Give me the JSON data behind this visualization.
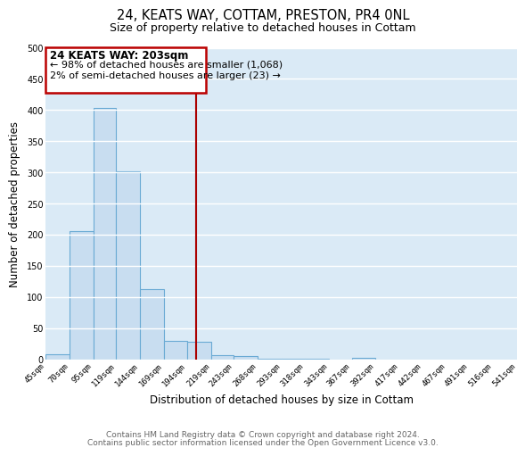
{
  "title": "24, KEATS WAY, COTTAM, PRESTON, PR4 0NL",
  "subtitle": "Size of property relative to detached houses in Cottam",
  "xlabel": "Distribution of detached houses by size in Cottam",
  "ylabel": "Number of detached properties",
  "bar_color": "#c8ddf0",
  "bar_edge_color": "#6aaad4",
  "bg_color": "#daeaf6",
  "grid_color": "#ffffff",
  "vline_x": 203,
  "vline_color": "#aa0000",
  "bin_edges": [
    45,
    70,
    95,
    119,
    144,
    169,
    194,
    219,
    243,
    268,
    293,
    318,
    343,
    367,
    392,
    417,
    442,
    467,
    491,
    516,
    541
  ],
  "counts": [
    8,
    205,
    403,
    302,
    113,
    30,
    28,
    7,
    5,
    1,
    1,
    1,
    0,
    2,
    0,
    0,
    0,
    0,
    0,
    0
  ],
  "annotation_title": "24 KEATS WAY: 203sqm",
  "annotation_line1": "← 98% of detached houses are smaller (1,068)",
  "annotation_line2": "2% of semi-detached houses are larger (23) →",
  "annotation_box_facecolor": "#ffffff",
  "annotation_border_color": "#bb0000",
  "footer1": "Contains HM Land Registry data © Crown copyright and database right 2024.",
  "footer2": "Contains public sector information licensed under the Open Government Licence v3.0.",
  "ylim": [
    0,
    500
  ],
  "yticks": [
    0,
    50,
    100,
    150,
    200,
    250,
    300,
    350,
    400,
    450,
    500
  ],
  "tick_labels": [
    "45sqm",
    "70sqm",
    "95sqm",
    "119sqm",
    "144sqm",
    "169sqm",
    "194sqm",
    "219sqm",
    "243sqm",
    "268sqm",
    "293sqm",
    "318sqm",
    "343sqm",
    "367sqm",
    "392sqm",
    "417sqm",
    "442sqm",
    "467sqm",
    "491sqm",
    "516sqm",
    "541sqm"
  ],
  "fig_facecolor": "#ffffff",
  "title_fontsize": 10.5,
  "subtitle_fontsize": 9.0,
  "ylabel_fontsize": 8.5,
  "xlabel_fontsize": 8.5,
  "tick_fontsize": 6.5,
  "footer_fontsize": 6.5,
  "footer_color": "#666666"
}
